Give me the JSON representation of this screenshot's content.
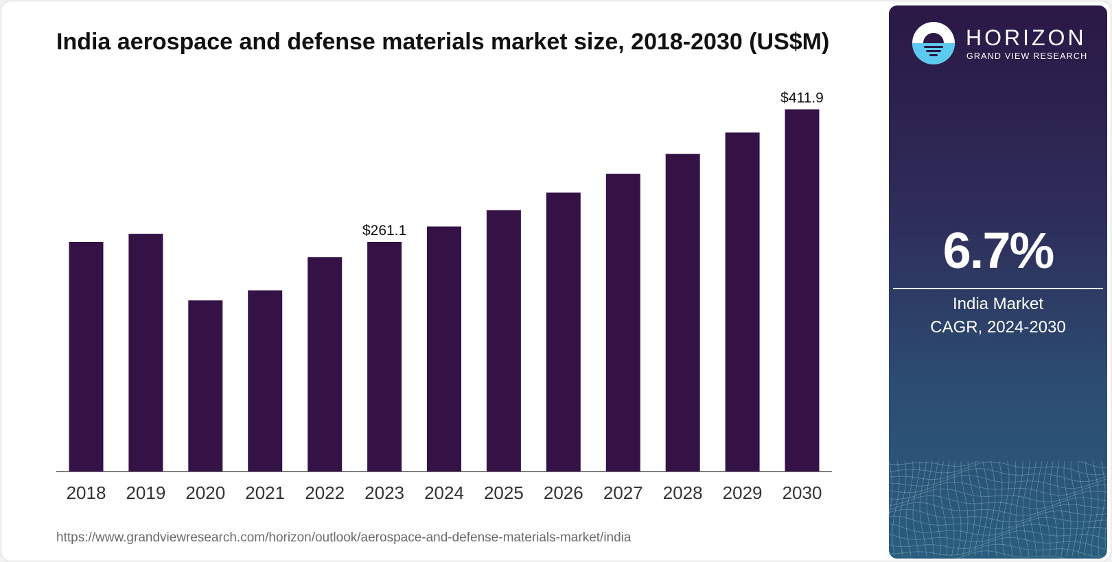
{
  "title": "India aerospace and defense materials market size, 2018-2030 (US$M)",
  "source_url": "https://www.grandviewresearch.com/horizon/outlook/aerospace-and-defense-materials-market/india",
  "brand": {
    "name": "HORIZON",
    "subtitle": "GRAND VIEW RESEARCH",
    "icon": "horizon-sun-logo-icon"
  },
  "cagr": {
    "value": "6.7%",
    "label_line1": "India Market",
    "label_line2": "CAGR, 2024-2030"
  },
  "colors": {
    "bar": "#341245",
    "axis": "#333333",
    "logo_accent": "#5cc9ef",
    "logo_dark": "#2b1846"
  },
  "chart_data": {
    "type": "bar",
    "categories": [
      "2018",
      "2019",
      "2020",
      "2021",
      "2022",
      "2023",
      "2024",
      "2025",
      "2026",
      "2027",
      "2028",
      "2029",
      "2030"
    ],
    "values": [
      261.1,
      270.4,
      194.6,
      206.1,
      243.8,
      261.1,
      278.6,
      297.3,
      317.3,
      338.5,
      361.2,
      385.5,
      411.9
    ],
    "data_labels": [
      {
        "index": 5,
        "text": "$261.1"
      },
      {
        "index": 12,
        "text": "$411.9"
      }
    ],
    "title": "India aerospace and defense materials market size, 2018-2030 (US$M)",
    "xlabel": "",
    "ylabel": "",
    "ylim": [
      0,
      420
    ],
    "grid": false,
    "legend": "none"
  }
}
